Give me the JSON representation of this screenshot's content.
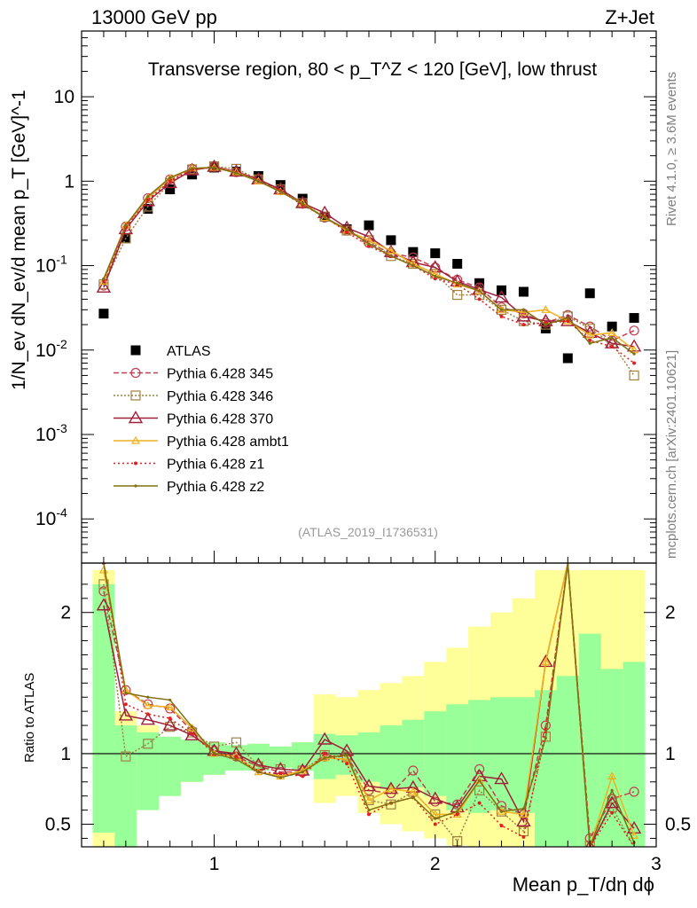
{
  "header": {
    "left": "13000 GeV pp",
    "right": "Z+Jet",
    "title": "Transverse region, 80 < p_T^Z < 120 [GeV], low thrust"
  },
  "side": {
    "rivet": "Rivet 4.1.0, ≥ 3.6M events",
    "mcplots": "mcplots.cern.ch [arXiv:2401.10621]"
  },
  "watermark": "(ATLAS_2019_I1736531)",
  "ratio_label": "Ratio to ATLAS",
  "ylabel": "1/N_ev dN_ev/d mean p_T [GeV]^-1",
  "xlabel": "Mean p_T/dη dϕ",
  "colors": {
    "atlas": "#000000",
    "band_inner": "#99ff99",
    "band_outer": "#ffff99"
  },
  "chart_data": [
    {
      "type": "scatter",
      "name": "main",
      "yscale": "log",
      "xlim": [
        0.4,
        3.0
      ],
      "ylim": [
        3e-05,
        60
      ],
      "xticks": [
        1,
        2,
        3
      ],
      "yticks": [
        {
          "v": 0.0001,
          "m": "10",
          "e": "-4"
        },
        {
          "v": 0.001,
          "m": "10",
          "e": "-3"
        },
        {
          "v": 0.01,
          "m": "10",
          "e": "-2"
        },
        {
          "v": 0.1,
          "m": "10",
          "e": "-1"
        },
        {
          "v": 1,
          "m": "1",
          "e": ""
        },
        {
          "v": 10,
          "m": "10",
          "e": ""
        }
      ],
      "x": [
        0.5,
        0.6,
        0.7,
        0.8,
        0.9,
        1.0,
        1.1,
        1.2,
        1.3,
        1.4,
        1.5,
        1.6,
        1.7,
        1.8,
        1.9,
        2.0,
        2.1,
        2.2,
        2.3,
        2.4,
        2.5,
        2.6,
        2.7,
        2.8,
        2.9
      ],
      "series": [
        {
          "name": "ATLAS",
          "label": "ATLAS",
          "color": "#000000",
          "dash": "",
          "marker": "square",
          "line": false,
          "values": [
            0.027,
            0.21,
            0.47,
            0.8,
            1.2,
            1.45,
            1.3,
            1.15,
            0.9,
            0.62,
            0.38,
            0.27,
            0.3,
            0.2,
            0.145,
            0.14,
            0.105,
            0.062,
            0.051,
            0.049,
            0.018,
            0.008,
            0.047,
            0.019,
            0.024
          ]
        },
        {
          "name": "p345",
          "label": "Pythia 6.428 345",
          "color": "#c04050",
          "dash": "6,3",
          "marker": "circle",
          "line": true,
          "values": [
            0.058,
            0.29,
            0.63,
            1.05,
            1.4,
            1.48,
            1.28,
            1.05,
            0.78,
            0.54,
            0.37,
            0.26,
            0.185,
            0.14,
            0.125,
            0.095,
            0.068,
            0.055,
            0.032,
            0.027,
            0.021,
            0.026,
            0.019,
            0.013,
            0.017
          ]
        },
        {
          "name": "p346",
          "label": "Pythia 6.428 346",
          "color": "#a08040",
          "dash": "2,2",
          "marker": "square-open",
          "line": true,
          "values": [
            0.06,
            0.21,
            0.5,
            0.95,
            1.38,
            1.5,
            1.4,
            1.05,
            0.8,
            0.55,
            0.38,
            0.26,
            0.2,
            0.13,
            0.105,
            0.08,
            0.045,
            0.045,
            0.03,
            0.022,
            0.02,
            0.025,
            0.018,
            0.012,
            0.005
          ]
        },
        {
          "name": "p370",
          "label": "Pythia 6.428 370",
          "color": "#a0203a",
          "dash": "",
          "marker": "triangle",
          "line": true,
          "values": [
            0.055,
            0.27,
            0.58,
            0.95,
            1.35,
            1.48,
            1.3,
            1.05,
            0.8,
            0.55,
            0.42,
            0.28,
            0.22,
            0.145,
            0.11,
            0.095,
            0.065,
            0.052,
            0.042,
            0.025,
            0.022,
            0.022,
            0.016,
            0.012,
            0.011
          ]
        },
        {
          "name": "ambt1",
          "label": "Pythia 6.428 ambt1",
          "color": "#f0b020",
          "dash": "",
          "marker": "triangle-small",
          "line": true,
          "values": [
            0.065,
            0.3,
            0.63,
            1.08,
            1.42,
            1.45,
            1.28,
            1.0,
            0.75,
            0.55,
            0.37,
            0.26,
            0.2,
            0.15,
            0.105,
            0.08,
            0.06,
            0.05,
            0.03,
            0.028,
            0.03,
            0.022,
            0.015,
            0.016,
            0.01
          ]
        },
        {
          "name": "z1",
          "label": "Pythia 6.428 z1",
          "color": "#e02020",
          "dash": "2,3",
          "marker": "dot",
          "line": true,
          "values": [
            0.068,
            0.28,
            0.6,
            1.0,
            1.38,
            1.45,
            1.27,
            1.0,
            0.77,
            0.52,
            0.38,
            0.25,
            0.17,
            0.13,
            0.1,
            0.07,
            0.06,
            0.04,
            0.025,
            0.02,
            0.021,
            0.022,
            0.013,
            0.011,
            0.007
          ]
        },
        {
          "name": "z2",
          "label": "Pythia 6.428 z2",
          "color": "#807010",
          "dash": "",
          "marker": "dot-small",
          "line": true,
          "values": [
            0.07,
            0.3,
            0.66,
            1.1,
            1.42,
            1.45,
            1.25,
            1.0,
            0.75,
            0.54,
            0.37,
            0.27,
            0.18,
            0.13,
            0.1,
            0.075,
            0.062,
            0.05,
            0.03,
            0.03,
            0.02,
            0.024,
            0.012,
            0.014,
            0.009
          ]
        }
      ]
    },
    {
      "type": "line",
      "name": "ratio",
      "ylabel": "Ratio to ATLAS",
      "xlim": [
        0.4,
        3.0
      ],
      "ylim": [
        0.34,
        2.35
      ],
      "yticks": [
        0.5,
        1,
        2
      ],
      "xticks": [
        1,
        2,
        3
      ],
      "band_inner": [
        [
          0.44,
          2.2
        ],
        [
          0.3,
          1.2
        ],
        [
          0.6,
          1.15
        ],
        [
          0.7,
          1.12
        ],
        [
          0.8,
          1.1
        ],
        [
          0.85,
          1.08
        ],
        [
          0.88,
          1.06
        ],
        [
          0.88,
          1.07
        ],
        [
          0.9,
          1.05
        ],
        [
          0.88,
          1.08
        ],
        [
          0.82,
          1.14
        ],
        [
          0.85,
          1.13
        ],
        [
          0.8,
          1.15
        ],
        [
          0.75,
          1.2
        ],
        [
          0.76,
          1.24
        ],
        [
          0.7,
          1.3
        ],
        [
          0.6,
          1.35
        ],
        [
          0.58,
          1.38
        ],
        [
          0.6,
          1.4
        ],
        [
          0.58,
          1.4
        ],
        [
          0.3,
          1.45
        ],
        [
          0.3,
          1.55
        ],
        [
          0.3,
          1.85
        ],
        [
          0.3,
          1.6
        ],
        [
          0.3,
          1.65
        ]
      ],
      "band_outer": [
        [
          0.3,
          2.3
        ],
        [
          0.3,
          1.3
        ],
        [
          0.65,
          1.2
        ],
        [
          0.7,
          1.12
        ],
        [
          0.8,
          1.1
        ],
        [
          0.85,
          1.08
        ],
        [
          0.88,
          1.06
        ],
        [
          0.88,
          1.07
        ],
        [
          0.9,
          1.05
        ],
        [
          0.88,
          1.08
        ],
        [
          0.65,
          1.42
        ],
        [
          0.7,
          1.4
        ],
        [
          0.58,
          1.45
        ],
        [
          0.5,
          1.5
        ],
        [
          0.45,
          1.55
        ],
        [
          0.4,
          1.65
        ],
        [
          0.35,
          1.75
        ],
        [
          0.3,
          1.9
        ],
        [
          0.3,
          2.0
        ],
        [
          0.3,
          2.1
        ],
        [
          0.3,
          2.3
        ],
        [
          0.3,
          2.3
        ],
        [
          0.3,
          2.3
        ],
        [
          0.3,
          2.3
        ],
        [
          0.3,
          2.3
        ]
      ],
      "series": [
        {
          "name": "p345",
          "values": [
            2.15,
            1.45,
            1.35,
            1.32,
            1.16,
            1.02,
            0.98,
            0.91,
            0.87,
            0.87,
            0.98,
            0.98,
            0.74,
            0.72,
            0.88,
            0.66,
            0.64,
            0.89,
            0.63,
            0.57,
            1.2,
            2.6,
            0.4,
            0.68,
            0.73
          ]
        },
        {
          "name": "p346",
          "values": [
            2.2,
            0.98,
            1.07,
            1.19,
            1.15,
            1.05,
            1.08,
            0.91,
            0.89,
            0.88,
            0.99,
            0.98,
            0.67,
            0.64,
            0.73,
            0.57,
            0.38,
            0.74,
            0.59,
            0.45,
            1.12,
            2.5,
            0.35,
            0.62,
            0.21
          ]
        },
        {
          "name": "p370",
          "values": [
            2.05,
            1.27,
            1.24,
            1.2,
            1.13,
            1.02,
            1.0,
            0.92,
            0.89,
            0.88,
            1.1,
            1.02,
            0.77,
            0.75,
            0.76,
            0.68,
            0.62,
            0.84,
            0.82,
            0.52,
            1.65,
            2.6,
            0.34,
            0.65,
            0.47
          ]
        },
        {
          "name": "ambt1",
          "values": [
            2.3,
            1.45,
            1.34,
            1.33,
            1.18,
            1.0,
            0.98,
            0.87,
            0.84,
            0.88,
            0.97,
            0.96,
            0.67,
            0.75,
            0.73,
            0.57,
            0.57,
            0.81,
            0.59,
            0.57,
            1.65,
            2.75,
            0.32,
            0.84,
            0.42
          ]
        },
        {
          "name": "z1",
          "values": [
            2.35,
            1.35,
            1.28,
            1.25,
            1.14,
            1.0,
            0.98,
            0.87,
            0.86,
            0.84,
            1.0,
            0.93,
            0.57,
            0.65,
            0.69,
            0.5,
            0.57,
            0.65,
            0.49,
            0.41,
            1.17,
            2.75,
            0.28,
            0.58,
            0.29
          ]
        },
        {
          "name": "z2",
          "values": [
            2.4,
            1.43,
            1.4,
            1.38,
            1.19,
            1.0,
            0.96,
            0.87,
            0.83,
            0.87,
            0.97,
            0.99,
            0.6,
            0.65,
            0.69,
            0.54,
            0.59,
            0.81,
            0.59,
            0.61,
            1.11,
            3.0,
            0.26,
            0.74,
            0.37
          ]
        }
      ]
    }
  ]
}
